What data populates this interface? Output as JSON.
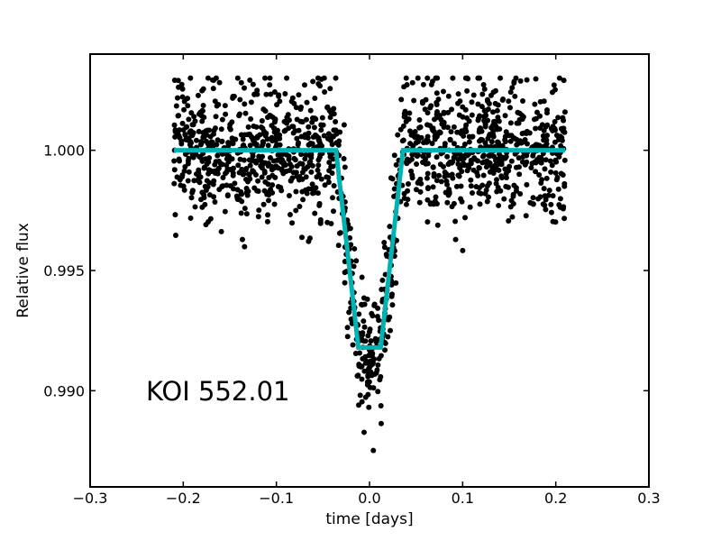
{
  "chart_data": {
    "type": "scatter",
    "xlabel": "time [days]",
    "ylabel": "Relative flux",
    "xlim": [
      -0.3,
      0.3
    ],
    "ylim": [
      0.986,
      1.004
    ],
    "xticks": [
      -0.3,
      -0.2,
      -0.1,
      0.0,
      0.1,
      0.2,
      0.3
    ],
    "xtick_labels": [
      "−0.3",
      "−0.2",
      "−0.1",
      "0.0",
      "0.1",
      "0.2",
      "0.3"
    ],
    "yticks": [
      0.99,
      0.995,
      1.0
    ],
    "ytick_labels": [
      "0.990",
      "0.995",
      "1.000"
    ],
    "annotation": "KOI 552.01",
    "grid": false,
    "scatter": {
      "color": "#000000",
      "x_range": [
        -0.21,
        0.21
      ],
      "baseline": 1.0,
      "scatter_sigma": 0.0014,
      "point_count": 1500
    },
    "model": {
      "color": "#00b3b3",
      "x": [
        -0.21,
        -0.036,
        -0.012,
        0.012,
        0.036,
        0.21
      ],
      "y": [
        1.0,
        1.0,
        0.9918,
        0.9918,
        1.0,
        1.0
      ]
    }
  }
}
